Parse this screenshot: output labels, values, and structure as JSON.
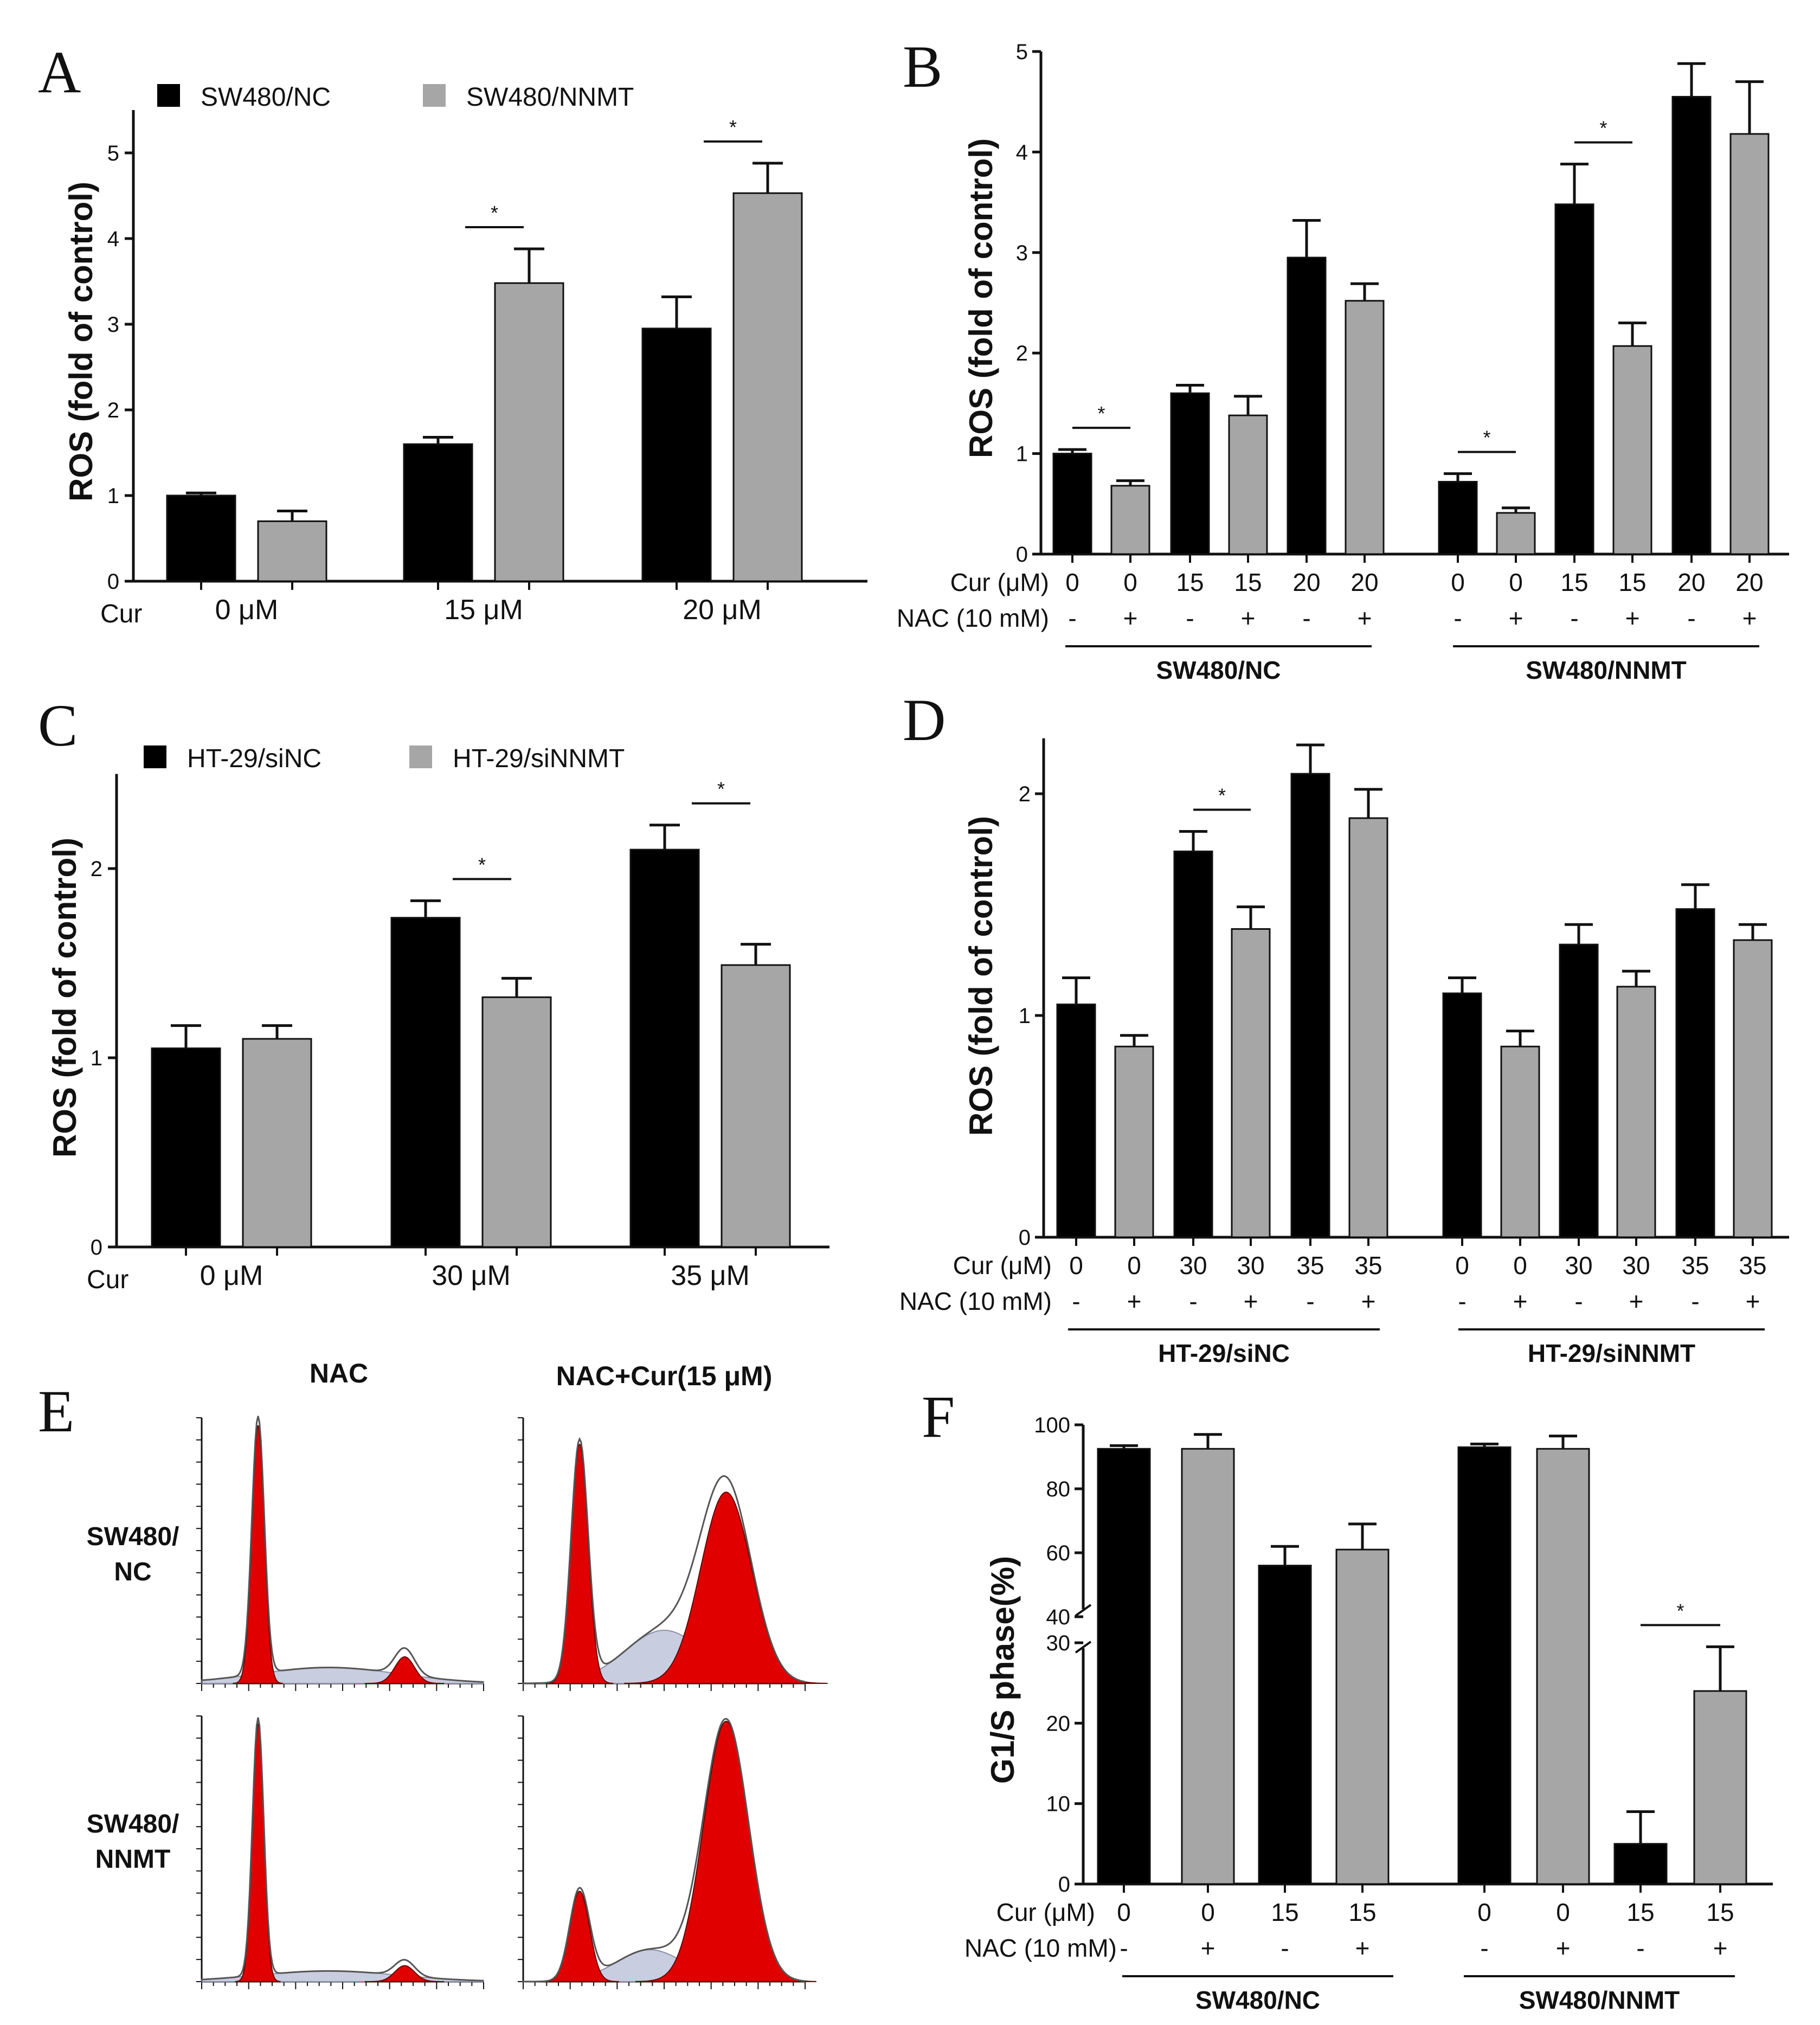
{
  "colors": {
    "black_bar": "#000000",
    "gray_bar": "#a6a6a6",
    "red_peak": "#e00000",
    "shade": "#c8cde0"
  },
  "chart_data": [
    {
      "id": "A",
      "type": "bar",
      "ylabel": "ROS (fold of control)",
      "ylim": [
        0,
        5.5
      ],
      "yticks": [
        "0",
        "1",
        "2",
        "3",
        "4",
        "5"
      ],
      "legend": [
        "SW480/NC",
        "SW480/NNMT"
      ],
      "row_label": "Cur",
      "categories": [
        "0 μM",
        "15 μM",
        "20 μM"
      ],
      "series": [
        {
          "name": "SW480/NC",
          "values": [
            1.0,
            1.6,
            2.95
          ],
          "errors": [
            0.03,
            0.08,
            0.37
          ]
        },
        {
          "name": "SW480/NNMT",
          "values": [
            0.7,
            3.48,
            4.53
          ],
          "errors": [
            0.12,
            0.4,
            0.35
          ]
        }
      ],
      "significance": [
        {
          "group": 1,
          "mark": "*"
        },
        {
          "group": 2,
          "mark": "*"
        }
      ]
    },
    {
      "id": "B",
      "type": "bar",
      "ylabel": "ROS (fold of control)",
      "ylim": [
        0,
        5
      ],
      "yticks": [
        "0",
        "1",
        "2",
        "3",
        "4",
        "5"
      ],
      "row1_label": "Cur (μM)",
      "row2_label": "NAC (10 mM)",
      "cur": [
        "0",
        "0",
        "15",
        "15",
        "20",
        "20",
        "0",
        "0",
        "15",
        "15",
        "20",
        "20"
      ],
      "nac": [
        "-",
        "+",
        "-",
        "+",
        "-",
        "+",
        "-",
        "+",
        "-",
        "+",
        "-",
        "+"
      ],
      "values": [
        1.0,
        0.68,
        1.6,
        1.38,
        2.95,
        2.52,
        0.72,
        0.41,
        3.48,
        2.07,
        4.55,
        4.18
      ],
      "errors": [
        0.04,
        0.05,
        0.08,
        0.19,
        0.37,
        0.17,
        0.08,
        0.05,
        0.4,
        0.23,
        0.33,
        0.52
      ],
      "group_labels": [
        "SW480/NC",
        "SW480/NNMT"
      ],
      "significance": [
        {
          "bars": [
            0,
            1
          ],
          "mark": "*"
        },
        {
          "bars": [
            6,
            7
          ],
          "mark": "*"
        },
        {
          "bars": [
            8,
            9
          ],
          "mark": "*"
        }
      ]
    },
    {
      "id": "C",
      "type": "bar",
      "ylabel": "ROS (fold of control)",
      "ylim": [
        0,
        2.5
      ],
      "yticks": [
        "0",
        "1",
        "2"
      ],
      "legend": [
        "HT-29/siNC",
        "HT-29/siNNMT"
      ],
      "row_label": "Cur",
      "categories": [
        "0 μM",
        "30 μM",
        "35 μM"
      ],
      "series": [
        {
          "name": "HT-29/siNC",
          "values": [
            1.05,
            1.74,
            2.1
          ],
          "errors": [
            0.12,
            0.09,
            0.13
          ]
        },
        {
          "name": "HT-29/siNNMT",
          "values": [
            1.1,
            1.32,
            1.49
          ],
          "errors": [
            0.07,
            0.1,
            0.11
          ]
        }
      ],
      "significance": [
        {
          "group": 1,
          "mark": "*"
        },
        {
          "group": 2,
          "mark": "*"
        }
      ]
    },
    {
      "id": "D",
      "type": "bar",
      "ylabel": "ROS (fold of control)",
      "ylim": [
        0,
        2.25
      ],
      "yticks": [
        "0",
        "1",
        "2"
      ],
      "row1_label": "Cur (μM)",
      "row2_label": "NAC (10 mM)",
      "cur": [
        "0",
        "0",
        "30",
        "30",
        "35",
        "35",
        "0",
        "0",
        "30",
        "30",
        "35",
        "35"
      ],
      "nac": [
        "-",
        "+",
        "-",
        "+",
        "-",
        "+",
        "-",
        "+",
        "-",
        "+",
        "-",
        "+"
      ],
      "values": [
        1.05,
        0.86,
        1.74,
        1.39,
        2.09,
        1.89,
        1.1,
        0.86,
        1.32,
        1.13,
        1.48,
        1.34
      ],
      "errors": [
        0.12,
        0.05,
        0.09,
        0.1,
        0.13,
        0.13,
        0.07,
        0.07,
        0.09,
        0.07,
        0.11,
        0.07
      ],
      "group_labels": [
        "HT-29/siNC",
        "HT-29/siNNMT"
      ],
      "significance": [
        {
          "bars": [
            2,
            3
          ],
          "mark": "*"
        }
      ]
    },
    {
      "id": "F",
      "type": "bar",
      "ylabel": "G1/S phase(%)",
      "axis_break": [
        30,
        40
      ],
      "yticks_lower": [
        "0",
        "10",
        "20",
        "30"
      ],
      "yticks_upper": [
        "40",
        "60",
        "80",
        "100"
      ],
      "row1_label": "Cur (μM)",
      "row2_label": "NAC (10 mM)",
      "cur": [
        "0",
        "0",
        "15",
        "15",
        "0",
        "0",
        "15",
        "15"
      ],
      "nac": [
        "-",
        "+",
        "-",
        "+",
        "-",
        "+",
        "-",
        "+"
      ],
      "values": [
        92.5,
        92.5,
        56,
        61,
        93,
        92.5,
        5,
        24
      ],
      "errors": [
        1,
        4.5,
        6,
        8,
        1,
        4,
        4,
        5.5
      ],
      "group_labels": [
        "SW480/NC",
        "SW480/NNMT"
      ],
      "significance": [
        {
          "bars": [
            6,
            7
          ],
          "mark": "*"
        }
      ]
    }
  ],
  "panel_E": {
    "letter": "E",
    "col_labels": [
      "NAC",
      "NAC+Cur(15 μM)"
    ],
    "row_labels": [
      [
        "SW480/",
        "NC"
      ],
      [
        "SW480/",
        "NNMT"
      ]
    ]
  }
}
